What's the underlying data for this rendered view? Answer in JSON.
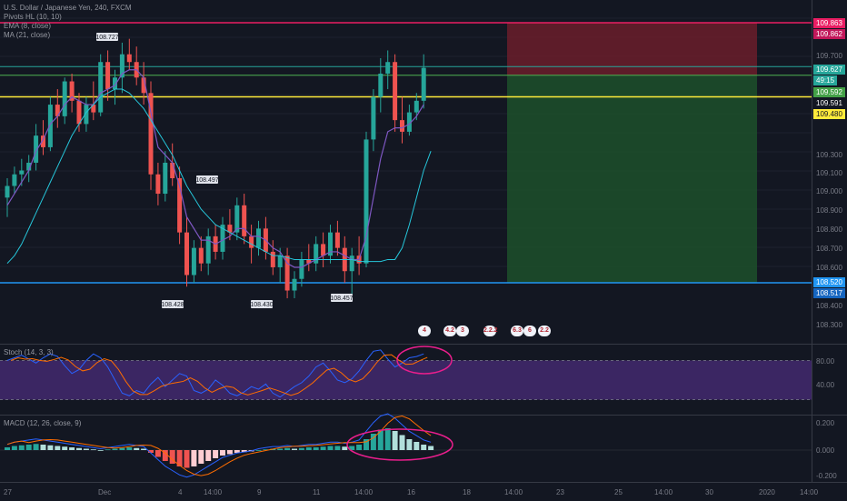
{
  "legend": {
    "symbol": "U.S. Dollar / Japanese Yen, 240, FXCM",
    "pivots": "Pivots HL (10, 10)",
    "ema": "EMA (8, close)",
    "ma": "MA (21, close)",
    "stoch": "Stoch (14, 3, 3)",
    "macd": "MACD (12, 26, close, 9)"
  },
  "colors": {
    "background": "#131722",
    "up": "#26a69a",
    "down": "#ef5350",
    "ema": "#7e57c2",
    "ma": "#26c6da",
    "resistance": "#e91e63",
    "support": "#2196f3",
    "yellow_line": "#ffeb3b",
    "green_line": "#4caf50",
    "stop_zone": "#6b1d2a",
    "target_zone": "#1d4d2a",
    "annotation": "#e91e8c"
  },
  "price_axis": {
    "ticks": [
      "109.863",
      "109.862",
      "109.700",
      "109.627",
      "49:15",
      "109.592",
      "109.591",
      "109.480",
      "109.300",
      "109.100",
      "109.000",
      "108.900",
      "108.800",
      "108.700",
      "108.600",
      "108.520",
      "108.517",
      "108.400",
      "108.300"
    ]
  },
  "pivot_labels": [
    "108.727",
    "108.497",
    "108.428",
    "108.430",
    "108.457"
  ],
  "event_icons": [
    "4",
    "4.2",
    "3",
    "2.2.2",
    "6.3",
    "6",
    "2.2"
  ],
  "stoch_axis": [
    "80.00",
    "40.00"
  ],
  "macd_axis": [
    "0.200",
    "0.000",
    "-0.200"
  ],
  "time_axis": [
    "27",
    "Dec",
    "4",
    "14:00",
    "9",
    "11",
    "14:00",
    "16",
    "18",
    "14:00",
    "23",
    "25",
    "14:00",
    "30",
    "2020",
    "14:00"
  ]
}
